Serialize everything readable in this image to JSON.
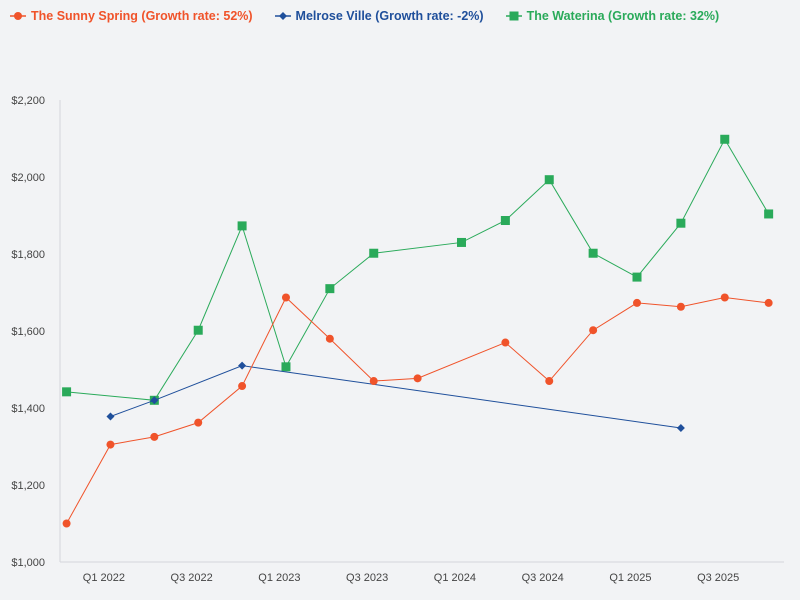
{
  "chart_data": {
    "type": "line",
    "title": "",
    "xlabel": "",
    "ylabel": "",
    "ylim": [
      1000,
      2200
    ],
    "yticks": [
      1000,
      1200,
      1400,
      1600,
      1800,
      2000,
      2200
    ],
    "ytick_labels": [
      "$1,000",
      "$1,200",
      "$1,400",
      "$1,600",
      "$1,800",
      "$2,000",
      "$2,200"
    ],
    "xlim": [
      0,
      16.5
    ],
    "xticks": [
      1,
      3,
      5,
      7,
      9,
      11,
      13,
      15
    ],
    "xtick_labels": [
      "Q1 2022",
      "Q3 2022",
      "Q1 2023",
      "Q3 2023",
      "Q1 2024",
      "Q3 2024",
      "Q1 2025",
      "Q3 2025"
    ],
    "legend_position": "top-left",
    "series": [
      {
        "name": "The Sunny Spring (Growth rate: 52%)",
        "color": "#f0532a",
        "marker": "circle",
        "points": [
          [
            0.15,
            1100
          ],
          [
            1.15,
            1305
          ],
          [
            2.15,
            1325
          ],
          [
            3.15,
            1362
          ],
          [
            4.15,
            1457
          ],
          [
            5.15,
            1687
          ],
          [
            6.15,
            1580
          ],
          [
            7.15,
            1470
          ],
          [
            8.15,
            1477
          ],
          [
            10.15,
            1570
          ],
          [
            11.15,
            1470
          ],
          [
            12.15,
            1602
          ],
          [
            13.15,
            1673
          ],
          [
            14.15,
            1663
          ],
          [
            15.15,
            1687
          ],
          [
            16.15,
            1673
          ]
        ]
      },
      {
        "name": "Melrose Ville (Growth rate: -2%)",
        "color": "#1f4f9b",
        "marker": "diamond",
        "points": [
          [
            1.15,
            1378
          ],
          [
            2.15,
            1420
          ],
          [
            4.15,
            1510
          ],
          [
            14.15,
            1348
          ]
        ]
      },
      {
        "name": "The Waterina (Growth rate: 32%)",
        "color": "#2aaa5a",
        "marker": "square",
        "points": [
          [
            0.15,
            1442
          ],
          [
            2.15,
            1420
          ],
          [
            3.15,
            1602
          ],
          [
            4.15,
            1873
          ],
          [
            5.15,
            1507
          ],
          [
            6.15,
            1710
          ],
          [
            7.15,
            1802
          ],
          [
            9.15,
            1830
          ],
          [
            10.15,
            1887
          ],
          [
            11.15,
            1993
          ],
          [
            12.15,
            1802
          ],
          [
            13.15,
            1740
          ],
          [
            14.15,
            1880
          ],
          [
            15.15,
            2098
          ],
          [
            16.15,
            1904
          ]
        ]
      }
    ]
  }
}
